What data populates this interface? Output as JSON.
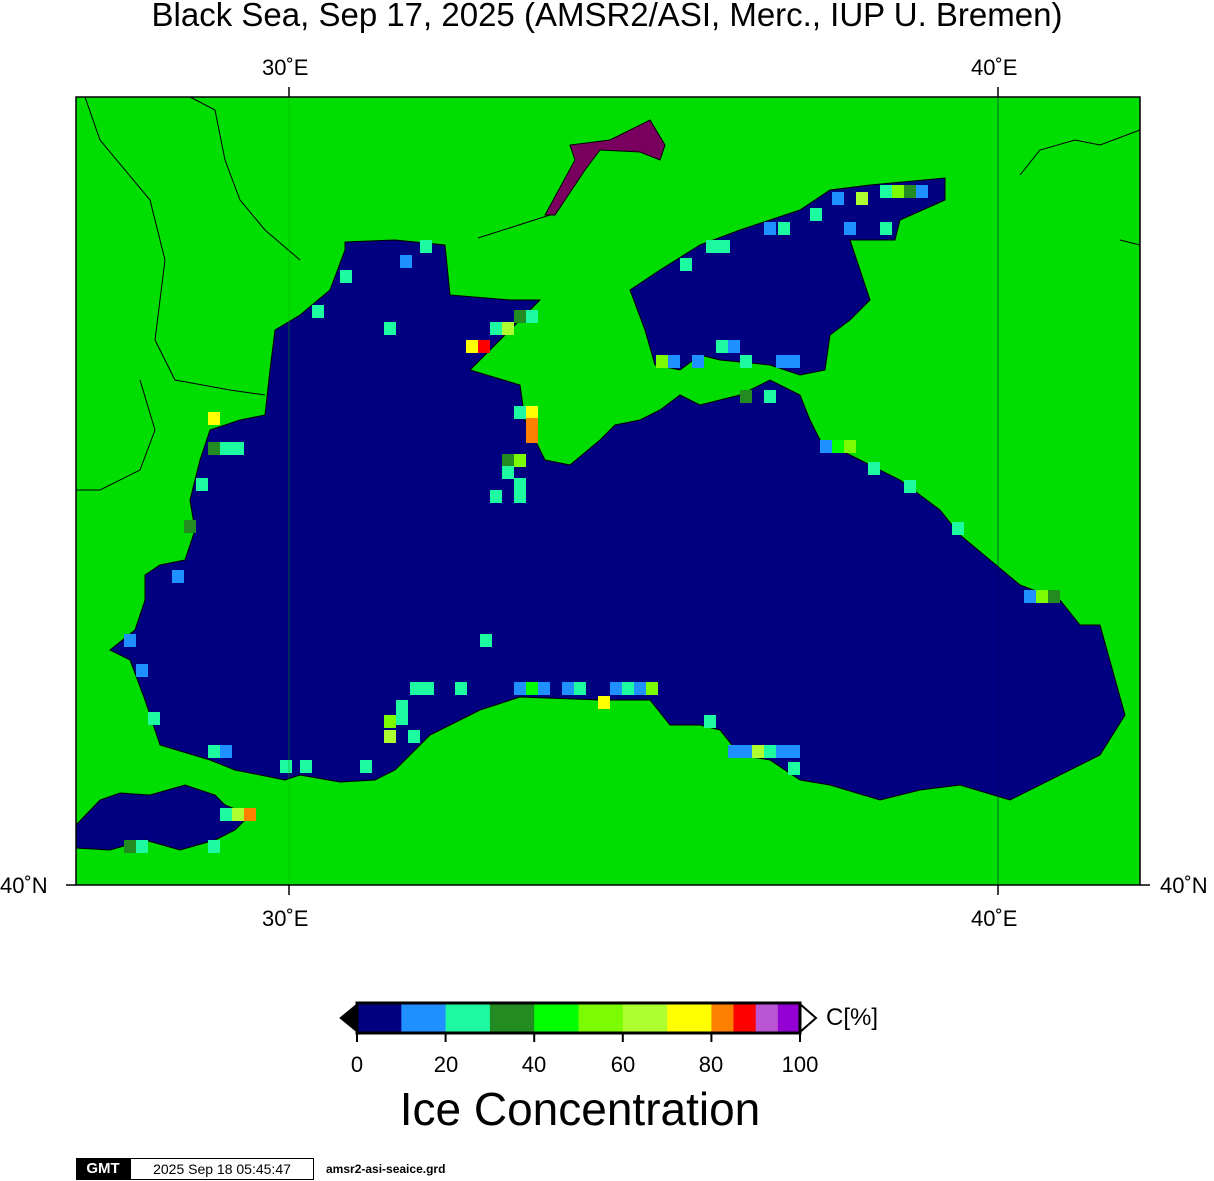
{
  "title": "Black Sea, Sep 17, 2025 (AMSR2/ASI, Merc., IUP U. Bremen)",
  "axes": {
    "lon_ticks": [
      "30˚E",
      "40˚E"
    ],
    "lat_ticks": [
      "40˚N"
    ]
  },
  "colors": {
    "land": "#00dd00",
    "open_water": "#000080",
    "no_data": "#888888"
  },
  "colorbar": {
    "label": "C[%]",
    "tick_labels": [
      "0",
      "20",
      "40",
      "60",
      "80",
      "100"
    ],
    "bins": [
      {
        "from": 0,
        "to": 10,
        "color": "#000080"
      },
      {
        "from": 10,
        "to": 20,
        "color": "#1e90ff"
      },
      {
        "from": 20,
        "to": 30,
        "color": "#1efaa0"
      },
      {
        "from": 30,
        "to": 40,
        "color": "#228b22"
      },
      {
        "from": 40,
        "to": 50,
        "color": "#00ff00"
      },
      {
        "from": 50,
        "to": 60,
        "color": "#7cfc00"
      },
      {
        "from": 60,
        "to": 70,
        "color": "#adff2f"
      },
      {
        "from": 70,
        "to": 80,
        "color": "#ffff00"
      },
      {
        "from": 80,
        "to": 85,
        "color": "#ff8000"
      },
      {
        "from": 85,
        "to": 90,
        "color": "#ff0000"
      },
      {
        "from": 90,
        "to": 95,
        "color": "#ba55d3"
      },
      {
        "from": 95,
        "to": 100,
        "color": "#9400d3"
      }
    ]
  },
  "product_title": "Ice Concentration",
  "footer": {
    "logo": "GMT",
    "timestamp": "2025 Sep 18 05:45:47",
    "grid_file": "amsr2-asi-seaice.grd"
  }
}
